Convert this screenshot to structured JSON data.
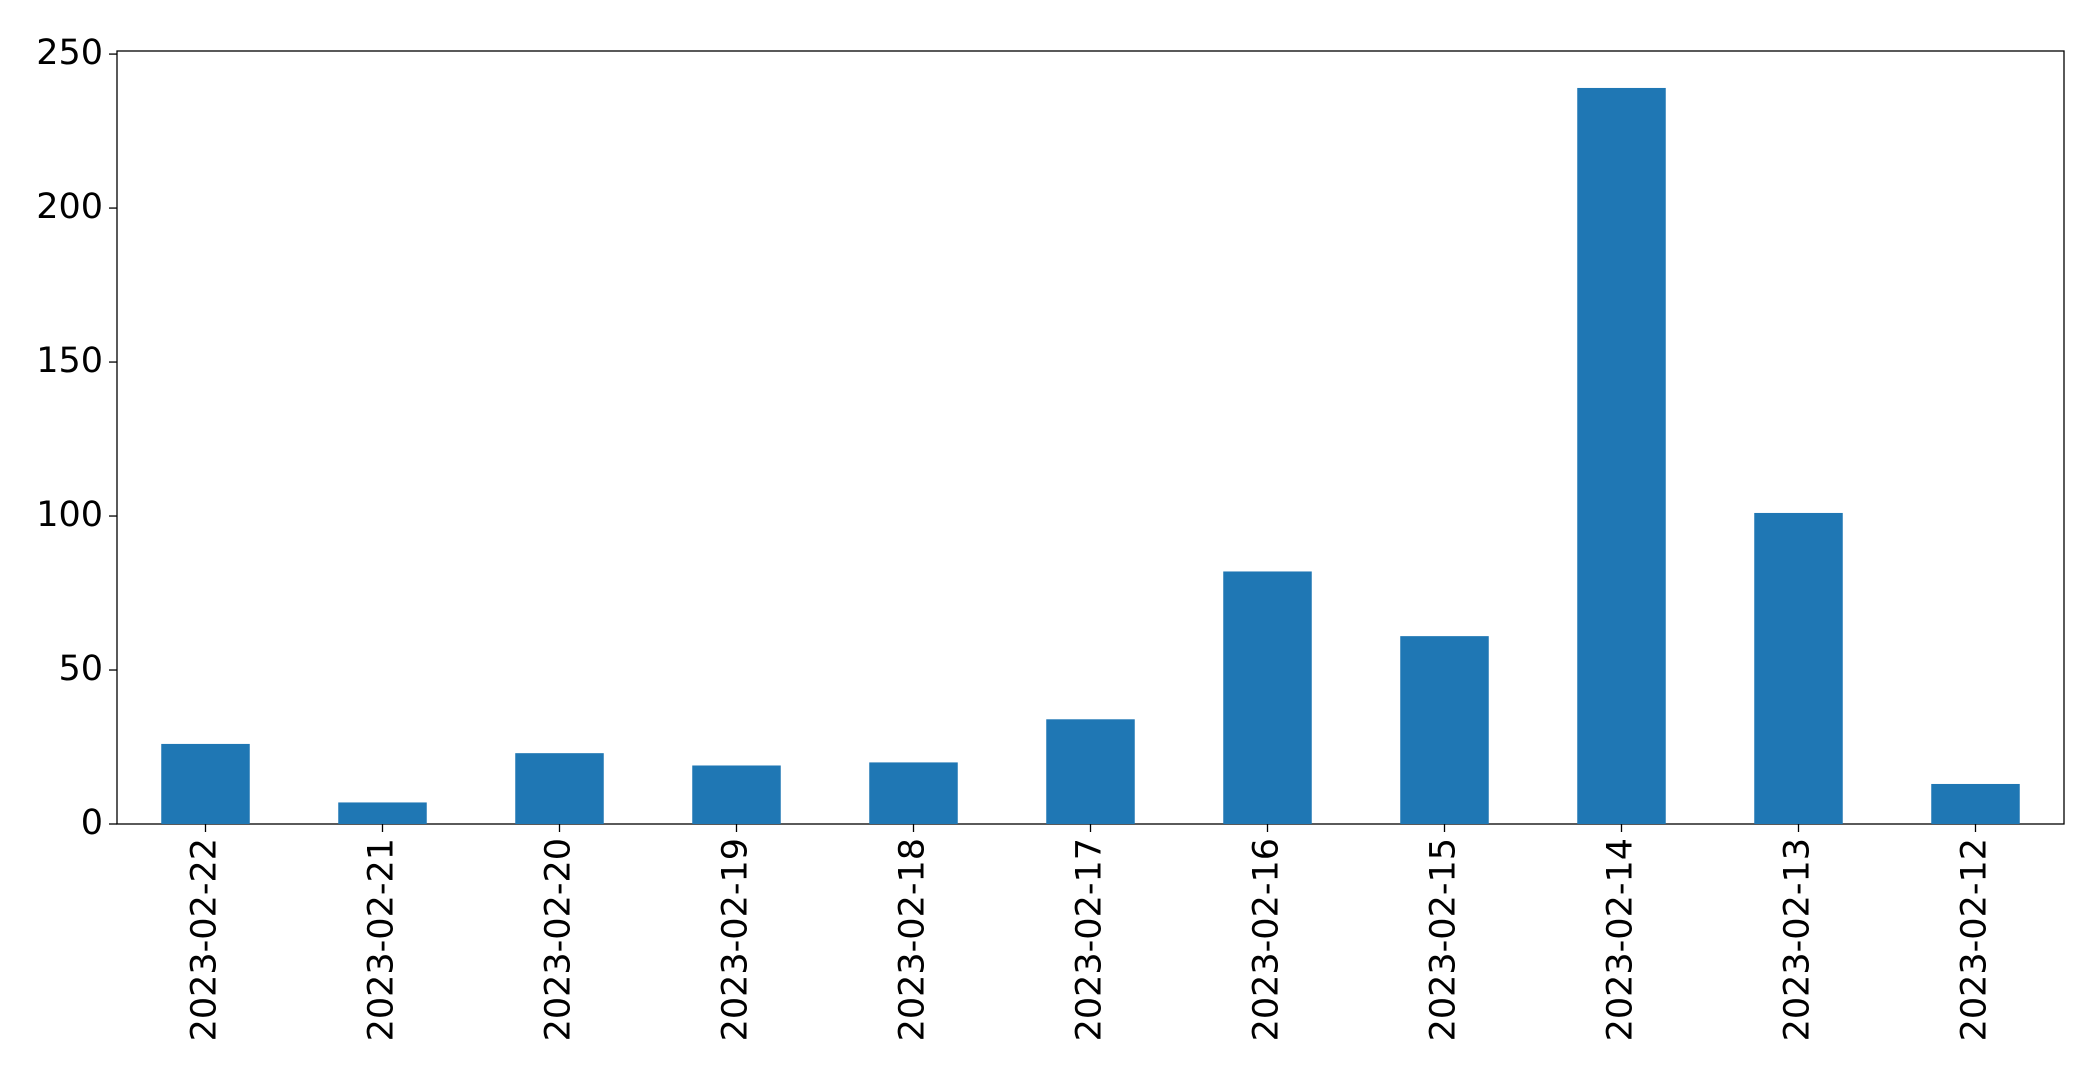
{
  "chart_data": {
    "type": "bar",
    "categories": [
      "2023-02-22",
      "2023-02-21",
      "2023-02-20",
      "2023-02-19",
      "2023-02-18",
      "2023-02-17",
      "2023-02-16",
      "2023-02-15",
      "2023-02-14",
      "2023-02-13",
      "2023-02-12"
    ],
    "values": [
      26,
      7,
      23,
      19,
      20,
      34,
      82,
      61,
      239,
      101,
      13
    ],
    "color": "#1f77b4",
    "ylim": [
      0,
      251
    ],
    "yticks": [
      0,
      50,
      100,
      150,
      200,
      250
    ],
    "grid": false
  }
}
